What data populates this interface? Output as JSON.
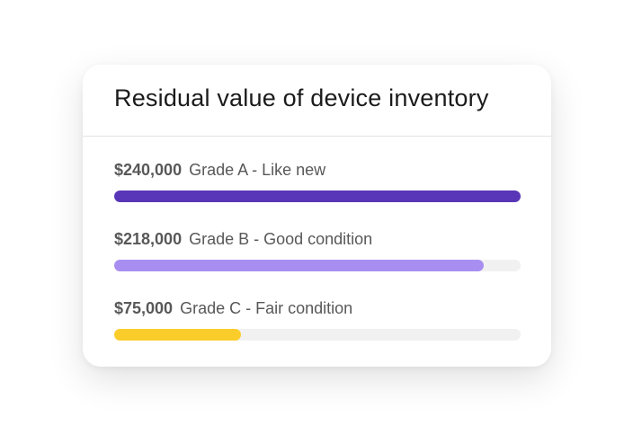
{
  "chart_data": {
    "type": "bar",
    "orientation": "horizontal",
    "title": "Residual value of device inventory",
    "categories": [
      "Grade A - Like new",
      "Grade B - Good condition",
      "Grade C - Fair condition"
    ],
    "values": [
      240000,
      218000,
      75000
    ],
    "value_labels": [
      "$240,000",
      "$218,000",
      "$75,000"
    ],
    "colors": [
      "#5936b8",
      "#a98ef2",
      "#fbcd2b"
    ],
    "xlim": [
      0,
      240000
    ]
  }
}
